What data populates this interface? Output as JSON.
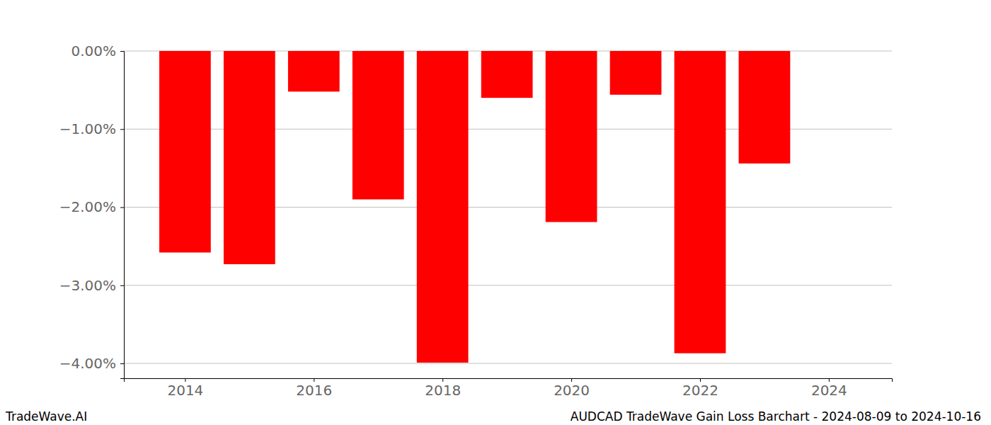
{
  "chart_data": {
    "type": "bar",
    "title": "AUDCAD TradeWave Gain Loss Barchart - 2024-08-09 to 2024-10-16",
    "annotations": [
      "TradeWave.AI"
    ],
    "x": [
      2014,
      2015,
      2016,
      2017,
      2018,
      2019,
      2020,
      2021,
      2022,
      2023
    ],
    "values": [
      -2.58,
      -2.73,
      -0.52,
      -1.9,
      -3.99,
      -0.6,
      -2.19,
      -0.56,
      -3.87,
      -1.44
    ],
    "color": "#ff0000",
    "xlim": [
      2013.05,
      2024.98
    ],
    "xticks": [
      2014,
      2016,
      2018,
      2020,
      2022,
      2024
    ],
    "ylim": [
      -4.19,
      0
    ],
    "yticks": [
      {
        "value": 0,
        "label": "0.00%"
      },
      {
        "value": -1,
        "label": "−1.00%"
      },
      {
        "value": -2,
        "label": "−2.00%"
      },
      {
        "value": -3,
        "label": "−3.00%"
      },
      {
        "value": -4,
        "label": "−4.00%"
      }
    ],
    "grid": true
  }
}
